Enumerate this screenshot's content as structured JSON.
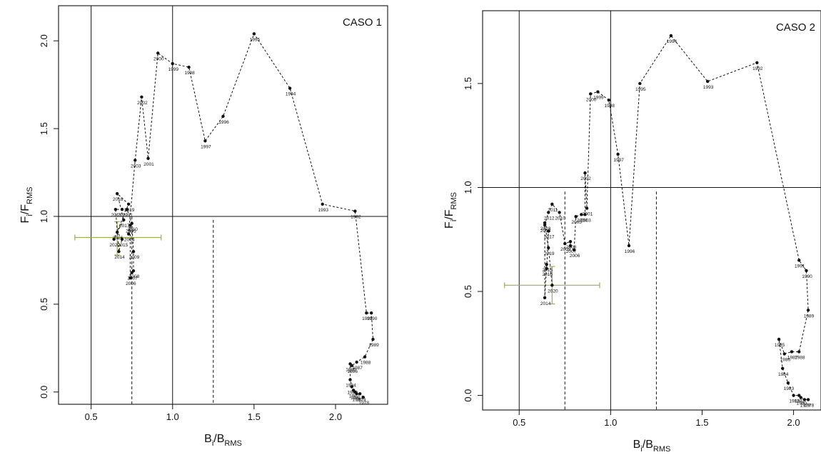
{
  "chart_data": [
    {
      "type": "scatter",
      "title": "CASO 1",
      "xlabel_main": "B",
      "xlabel_sub": "i",
      "xlabel_tail": "/B",
      "xlabel_tail_sub": "RMS",
      "ylabel_main": "F",
      "ylabel_sub": "i",
      "ylabel_tail": "/F",
      "ylabel_tail_sub": "RMS",
      "xlim": [
        0.3,
        2.32
      ],
      "ylim": [
        -0.07,
        2.2
      ],
      "xticks": [
        0.5,
        1.0,
        1.5,
        2.0
      ],
      "xtick_labels": [
        "0.5",
        "1.0",
        "1.5",
        "2.0"
      ],
      "yticks": [
        0.0,
        0.5,
        1.0,
        1.5,
        2.0
      ],
      "ytick_labels": [
        "0.0",
        "0.5",
        "1.0",
        "1.5",
        "2.0"
      ],
      "vlines_solid": [
        0.5,
        1.0
      ],
      "hline_solid": 1.0,
      "vlines_dashed": [
        {
          "x": 0.75,
          "y_top": 1.0
        },
        {
          "x": 1.25,
          "y_top": 0.98
        }
      ],
      "error_bar": {
        "x": 0.66,
        "y": 0.88,
        "x_low": 0.4,
        "x_high": 0.93,
        "y_low": 0.78,
        "y_high": 0.97
      },
      "points": [
        {
          "label": "1978",
          "x": 2.17,
          "y": -0.03
        },
        {
          "label": "1979",
          "x": 2.15,
          "y": -0.01
        },
        {
          "label": "1980",
          "x": 2.13,
          "y": -0.01
        },
        {
          "label": "1981",
          "x": 2.12,
          "y": 0.0
        },
        {
          "label": "1982",
          "x": 2.11,
          "y": 0.01
        },
        {
          "label": "1983",
          "x": 2.1,
          "y": 0.03
        },
        {
          "label": "1984",
          "x": 2.09,
          "y": 0.07
        },
        {
          "label": "1985",
          "x": 2.09,
          "y": 0.16
        },
        {
          "label": "1986",
          "x": 2.1,
          "y": 0.15
        },
        {
          "label": "1987",
          "x": 2.13,
          "y": 0.17
        },
        {
          "label": "1988",
          "x": 2.18,
          "y": 0.2
        },
        {
          "label": "1989",
          "x": 2.23,
          "y": 0.3
        },
        {
          "label": "1990",
          "x": 2.22,
          "y": 0.45
        },
        {
          "label": "1991",
          "x": 2.19,
          "y": 0.45
        },
        {
          "label": "1992",
          "x": 2.12,
          "y": 1.03
        },
        {
          "label": "1993",
          "x": 1.92,
          "y": 1.07
        },
        {
          "label": "1994",
          "x": 1.72,
          "y": 1.73
        },
        {
          "label": "1995",
          "x": 1.5,
          "y": 2.04
        },
        {
          "label": "1996",
          "x": 1.31,
          "y": 1.57
        },
        {
          "label": "1997",
          "x": 1.2,
          "y": 1.43
        },
        {
          "label": "1998",
          "x": 1.1,
          "y": 1.85
        },
        {
          "label": "1999",
          "x": 1.0,
          "y": 1.87
        },
        {
          "label": "2000",
          "x": 0.91,
          "y": 1.93
        },
        {
          "label": "2001",
          "x": 0.85,
          "y": 1.33
        },
        {
          "label": "2002",
          "x": 0.81,
          "y": 1.68
        },
        {
          "label": "2003",
          "x": 0.77,
          "y": 1.32
        },
        {
          "label": "2004",
          "x": 0.73,
          "y": 0.9
        },
        {
          "label": "2005",
          "x": 0.74,
          "y": 0.95
        },
        {
          "label": "2006",
          "x": 0.74,
          "y": 0.65
        },
        {
          "label": "2007",
          "x": 0.75,
          "y": 0.68
        },
        {
          "label": "2008",
          "x": 0.76,
          "y": 0.69
        },
        {
          "label": "2009",
          "x": 0.76,
          "y": 0.8
        },
        {
          "label": "2010",
          "x": 0.75,
          "y": 0.96
        },
        {
          "label": "2011",
          "x": 0.72,
          "y": 1.04
        },
        {
          "label": "2012",
          "x": 0.69,
          "y": 1.04
        },
        {
          "label": "2013",
          "x": 0.65,
          "y": 1.04
        },
        {
          "label": "2014",
          "x": 0.67,
          "y": 0.8
        },
        {
          "label": "2015",
          "x": 0.69,
          "y": 0.87
        },
        {
          "label": "2016",
          "x": 0.66,
          "y": 0.91
        },
        {
          "label": "2017",
          "x": 0.7,
          "y": 0.98
        },
        {
          "label": "2018",
          "x": 0.66,
          "y": 1.13
        },
        {
          "label": "2019",
          "x": 0.73,
          "y": 1.07
        },
        {
          "label": "2020",
          "x": 0.64,
          "y": 0.87
        }
      ]
    },
    {
      "type": "scatter",
      "title": "CASO 2",
      "xlabel_main": "B",
      "xlabel_sub": "i",
      "xlabel_tail": "/B",
      "xlabel_tail_sub": "RMS",
      "ylabel_main": "F",
      "ylabel_sub": "i",
      "ylabel_tail": "/F",
      "ylabel_tail_sub": "RMS",
      "xlim": [
        0.3,
        2.15
      ],
      "ylim": [
        -0.07,
        1.85
      ],
      "xticks": [
        0.5,
        1.0,
        1.5,
        2.0
      ],
      "xtick_labels": [
        "0.5",
        "1.0",
        "1.5",
        "2.0"
      ],
      "yticks": [
        0.0,
        0.5,
        1.0,
        1.5
      ],
      "ytick_labels": [
        "0.0",
        "0.5",
        "1.0",
        "1.5"
      ],
      "vlines_solid": [
        0.5,
        1.0
      ],
      "hline_solid": 1.0,
      "vlines_dashed": [
        {
          "x": 0.75,
          "y_top": 0.98
        },
        {
          "x": 1.25,
          "y_top": 0.98
        }
      ],
      "error_bar": {
        "x": 0.68,
        "y": 0.53,
        "x_low": 0.42,
        "x_high": 0.94,
        "y_low": 0.44,
        "y_high": 0.62
      },
      "points": [
        {
          "label": "1978",
          "x": 2.08,
          "y": -0.02
        },
        {
          "label": "1979",
          "x": 2.06,
          "y": -0.02
        },
        {
          "label": "1980",
          "x": 2.04,
          "y": -0.01
        },
        {
          "label": "1981",
          "x": 2.03,
          "y": 0.0
        },
        {
          "label": "1982",
          "x": 2.0,
          "y": 0.0
        },
        {
          "label": "1983",
          "x": 1.97,
          "y": 0.06
        },
        {
          "label": "1984",
          "x": 1.94,
          "y": 0.13
        },
        {
          "label": "1985",
          "x": 1.92,
          "y": 0.27
        },
        {
          "label": "1986",
          "x": 1.95,
          "y": 0.2
        },
        {
          "label": "1987",
          "x": 1.99,
          "y": 0.21
        },
        {
          "label": "1988",
          "x": 2.03,
          "y": 0.21
        },
        {
          "label": "1989",
          "x": 2.08,
          "y": 0.41
        },
        {
          "label": "1990",
          "x": 2.07,
          "y": 0.6
        },
        {
          "label": "1991",
          "x": 2.03,
          "y": 0.65
        },
        {
          "label": "1992",
          "x": 1.8,
          "y": 1.6
        },
        {
          "label": "1993",
          "x": 1.53,
          "y": 1.51
        },
        {
          "label": "1994",
          "x": 1.33,
          "y": 1.73
        },
        {
          "label": "1995",
          "x": 1.16,
          "y": 1.5
        },
        {
          "label": "1996",
          "x": 1.1,
          "y": 0.72
        },
        {
          "label": "1997",
          "x": 1.04,
          "y": 1.16
        },
        {
          "label": "1998",
          "x": 0.99,
          "y": 1.42
        },
        {
          "label": "1999",
          "x": 0.93,
          "y": 1.46
        },
        {
          "label": "2000",
          "x": 0.89,
          "y": 1.45
        },
        {
          "label": "2001",
          "x": 0.87,
          "y": 0.9
        },
        {
          "label": "2002",
          "x": 0.86,
          "y": 1.07
        },
        {
          "label": "2003",
          "x": 0.86,
          "y": 0.87
        },
        {
          "label": "2004",
          "x": 0.84,
          "y": 0.87
        },
        {
          "label": "2005",
          "x": 0.81,
          "y": 0.86
        },
        {
          "label": "2006",
          "x": 0.8,
          "y": 0.7
        },
        {
          "label": "2007",
          "x": 0.78,
          "y": 0.72
        },
        {
          "label": "2008",
          "x": 0.78,
          "y": 0.74
        },
        {
          "label": "2009",
          "x": 0.75,
          "y": 0.73
        },
        {
          "label": "2010",
          "x": 0.72,
          "y": 0.88
        },
        {
          "label": "2011",
          "x": 0.68,
          "y": 0.92
        },
        {
          "label": "2012",
          "x": 0.66,
          "y": 0.88
        },
        {
          "label": "2013",
          "x": 0.64,
          "y": 0.82
        },
        {
          "label": "2014",
          "x": 0.64,
          "y": 0.47
        },
        {
          "label": "2015",
          "x": 0.65,
          "y": 0.63
        },
        {
          "label": "2016",
          "x": 0.65,
          "y": 0.61
        },
        {
          "label": "2017",
          "x": 0.66,
          "y": 0.79
        },
        {
          "label": "2018",
          "x": 0.64,
          "y": 0.83
        },
        {
          "label": "2019",
          "x": 0.66,
          "y": 0.71
        },
        {
          "label": "2020",
          "x": 0.68,
          "y": 0.53
        }
      ]
    }
  ]
}
